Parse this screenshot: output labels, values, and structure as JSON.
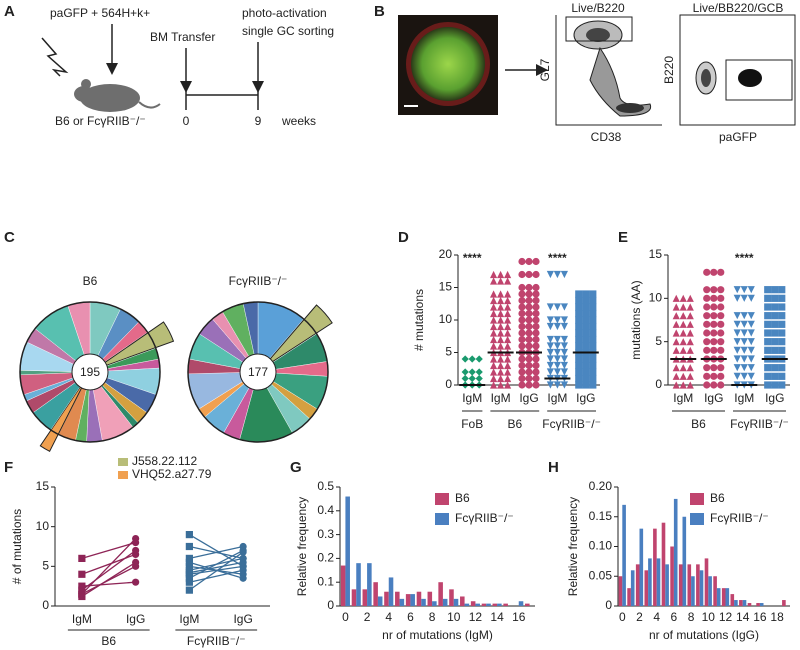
{
  "panel_labels": [
    "A",
    "B",
    "C",
    "D",
    "E",
    "F",
    "G",
    "H"
  ],
  "schematic": {
    "injection": "paGFP + 564H+k+",
    "transfer": "BM Transfer",
    "activation": "photo-activation",
    "sorting": "single GC sorting",
    "mice": "B6 or FcγRIIB⁻/⁻",
    "time_start": 0,
    "time_end": 9,
    "time_unit": "weeks"
  },
  "flow": {
    "gate1_title": "Live/B220",
    "gate1_y": "GL7",
    "gate1_x": "CD38",
    "gate2_title": "Live/BB220/GCB",
    "gate2_y": "B220",
    "gate2_x": "paGFP"
  },
  "chart_data": [
    {
      "type": "pie",
      "title": "B6",
      "total": 195,
      "values": [
        14,
        10,
        6,
        8,
        5,
        4,
        12,
        9,
        6,
        3,
        15,
        7,
        5,
        8,
        4,
        11,
        6,
        3,
        9,
        2,
        13,
        7,
        18,
        10
      ],
      "colors": [
        "#7fc9c0",
        "#5a8fc4",
        "#e46a8a",
        "#b8bd78",
        "#3b9a5a",
        "#c85a9c",
        "#8fd0e0",
        "#4a6aa8",
        "#d4a040",
        "#2e8a6a",
        "#f0a0b8",
        "#9a70b8",
        "#60b060",
        "#e08a50",
        "#f0a050",
        "#3aa0a0",
        "#b04a6a",
        "#6ab0d8",
        "#d06080",
        "#50a080",
        "#a8d8f0",
        "#c078a8",
        "#58c0b0",
        "#e890b0"
      ],
      "explode": [
        3,
        14
      ],
      "legend": [
        {
          "name": "J558.22.112",
          "color": "#b8bd78"
        },
        {
          "name": "VHQ52.a27.79",
          "color": "#f0a050"
        }
      ]
    },
    {
      "type": "pie",
      "title": "FcγRIIB⁻/⁻",
      "total": 177,
      "values": [
        20,
        8,
        12,
        6,
        14,
        5,
        9,
        22,
        7,
        10,
        4,
        15,
        6,
        11,
        8,
        5,
        9,
        6
      ],
      "colors": [
        "#5aa0d8",
        "#b8bd78",
        "#2e8a6a",
        "#e46a8a",
        "#3aa080",
        "#d4a040",
        "#7fc9c0",
        "#2a8a5a",
        "#c85a9c",
        "#6ab0d8",
        "#f0a050",
        "#98b8e0",
        "#b04a6a",
        "#58c0b0",
        "#9a70b8",
        "#e890b0",
        "#60b060",
        "#4a6aa8"
      ],
      "explode": [
        1
      ]
    },
    {
      "type": "strip",
      "ylabel": "# mutations",
      "ylim": [
        0,
        20
      ],
      "yticks": [
        0,
        5,
        10,
        15,
        20
      ],
      "groups": [
        {
          "name": "FoB",
          "categories": [
            {
              "name": "IgM",
              "color": "#1a9a6e",
              "marker": "diamond",
              "values": [
                0,
                1,
                2,
                4
              ],
              "median": 0,
              "annotation": "****"
            }
          ]
        },
        {
          "name": "B6",
          "categories": [
            {
              "name": "IgM",
              "color": "#c0446e",
              "marker": "triangle",
              "values": [
                0,
                1,
                2,
                3,
                4,
                5,
                6,
                7,
                8,
                9,
                10,
                11,
                12,
                13,
                14,
                16,
                17
              ],
              "median": 5
            },
            {
              "name": "IgG",
              "color": "#c0446e",
              "marker": "circle",
              "values": [
                0,
                1,
                2,
                3,
                4,
                5,
                6,
                7,
                8,
                9,
                10,
                11,
                12,
                13,
                14,
                15,
                17,
                19
              ],
              "median": 5
            }
          ]
        },
        {
          "name": "FcγRIIB⁻/⁻",
          "categories": [
            {
              "name": "IgM",
              "color": "#4a86c0",
              "marker": "triangle-down",
              "values": [
                0,
                1,
                2,
                3,
                4,
                5,
                6,
                7,
                9,
                10,
                12,
                17
              ],
              "median": 1,
              "annotation": "****"
            },
            {
              "name": "IgG",
              "color": "#4a86c0",
              "marker": "square",
              "values": [
                0,
                1,
                2,
                3,
                4,
                5,
                6,
                7,
                8,
                9,
                10,
                11,
                12,
                13,
                14
              ],
              "median": 5
            }
          ]
        }
      ]
    },
    {
      "type": "strip",
      "ylabel": "mutations (AA)",
      "ylim": [
        0,
        15
      ],
      "yticks": [
        0,
        5,
        10,
        15
      ],
      "groups": [
        {
          "name": "B6",
          "categories": [
            {
              "name": "IgM",
              "color": "#c0446e",
              "marker": "triangle",
              "values": [
                0,
                1,
                2,
                3,
                4,
                5,
                6,
                7,
                8,
                9,
                10
              ],
              "median": 3
            },
            {
              "name": "IgG",
              "color": "#c0446e",
              "marker": "circle",
              "values": [
                0,
                1,
                2,
                3,
                4,
                5,
                6,
                7,
                8,
                9,
                10,
                11,
                13
              ],
              "median": 3
            }
          ]
        },
        {
          "name": "FcγRIIB⁻/⁻",
          "categories": [
            {
              "name": "IgM",
              "color": "#4a86c0",
              "marker": "triangle-down",
              "values": [
                0,
                1,
                2,
                3,
                4,
                5,
                6,
                7,
                8,
                10,
                11
              ],
              "median": 0,
              "annotation": "****"
            },
            {
              "name": "IgG",
              "color": "#4a86c0",
              "marker": "square",
              "values": [
                0,
                1,
                2,
                3,
                4,
                5,
                6,
                7,
                8,
                9,
                10,
                11
              ],
              "median": 3
            }
          ]
        }
      ]
    },
    {
      "type": "paired",
      "ylabel": "# of mutations",
      "ylim": [
        0,
        15
      ],
      "yticks": [
        0,
        5,
        10,
        15
      ],
      "groups": [
        {
          "name": "B6",
          "categories": [
            "IgM",
            "IgG"
          ],
          "color": "#8e2456",
          "pairs": [
            [
              1.5,
              8.5
            ],
            [
              1.2,
              5.5
            ],
            [
              2,
              7
            ],
            [
              6,
              8
            ],
            [
              1.5,
              5
            ],
            [
              4,
              6.5
            ],
            [
              2.5,
              3
            ]
          ]
        },
        {
          "name": "FcγRIIB⁻/⁻",
          "categories": [
            "IgM",
            "IgG"
          ],
          "color": "#3a6e99",
          "pairs": [
            [
              9,
              5
            ],
            [
              7.5,
              6
            ],
            [
              6,
              7.5
            ],
            [
              5,
              4
            ],
            [
              4.5,
              6
            ],
            [
              4,
              5
            ],
            [
              3.5,
              7
            ],
            [
              3,
              4.5
            ],
            [
              5.5,
              3.5
            ],
            [
              4.2,
              5.5
            ],
            [
              2,
              6.8
            ]
          ]
        }
      ]
    },
    {
      "type": "bar",
      "ylabel": "Relative frequency",
      "xlabel": "nr of mutations (IgM)",
      "ylim": [
        0,
        0.5
      ],
      "yticks": [
        0,
        0.1,
        0.2,
        0.3,
        0.4,
        0.5
      ],
      "categories": [
        0,
        null,
        2,
        null,
        4,
        null,
        6,
        null,
        8,
        null,
        10,
        null,
        12,
        null,
        14,
        null,
        16,
        null
      ],
      "series": [
        {
          "name": "B6",
          "color": "#c0446e",
          "values": [
            0.17,
            0.07,
            0.07,
            0.1,
            0.06,
            0.06,
            0.05,
            0.06,
            0.06,
            0.1,
            0.07,
            0.04,
            0.02,
            0.01,
            0.01,
            0.01,
            0,
            0.01
          ]
        },
        {
          "name": "FcγRIIB⁻/⁻",
          "color": "#4a7fc0",
          "values": [
            0.46,
            0.18,
            0.18,
            0.04,
            0.12,
            0.03,
            0.05,
            0.03,
            0.02,
            0.03,
            0.03,
            0.01,
            0.01,
            0.01,
            0.01,
            0,
            0.02,
            0
          ]
        }
      ],
      "legend": "upper right"
    },
    {
      "type": "bar",
      "ylabel": "Relative frequency",
      "xlabel": "nr of mutations (IgG)",
      "ylim": [
        0,
        0.2
      ],
      "yticks": [
        0,
        0.05,
        {
          "value": 0.1,
          "label": "0.10"
        },
        0.15,
        {
          "value": 0.2,
          "label": "0.20"
        }
      ],
      "categories": [
        0,
        null,
        2,
        null,
        4,
        null,
        6,
        null,
        8,
        null,
        10,
        null,
        12,
        null,
        14,
        null,
        16,
        null,
        18,
        null
      ],
      "series": [
        {
          "name": "B6",
          "color": "#c0446e",
          "values": [
            0.05,
            0.03,
            0.07,
            0.06,
            0.13,
            0.14,
            0.1,
            0.07,
            0.07,
            0.07,
            0.08,
            0.05,
            0.03,
            0.02,
            0.01,
            0.005,
            0.005,
            0,
            0,
            0.01
          ]
        },
        {
          "name": "FcγRIIB⁻/⁻",
          "color": "#4a7fc0",
          "values": [
            0.17,
            0.06,
            0.13,
            0.08,
            0.08,
            0.07,
            0.18,
            0.15,
            0.05,
            0.06,
            0.05,
            0.03,
            0.03,
            0.01,
            0.01,
            0,
            0.005,
            0,
            0,
            0
          ]
        }
      ],
      "legend": "upper right"
    }
  ]
}
